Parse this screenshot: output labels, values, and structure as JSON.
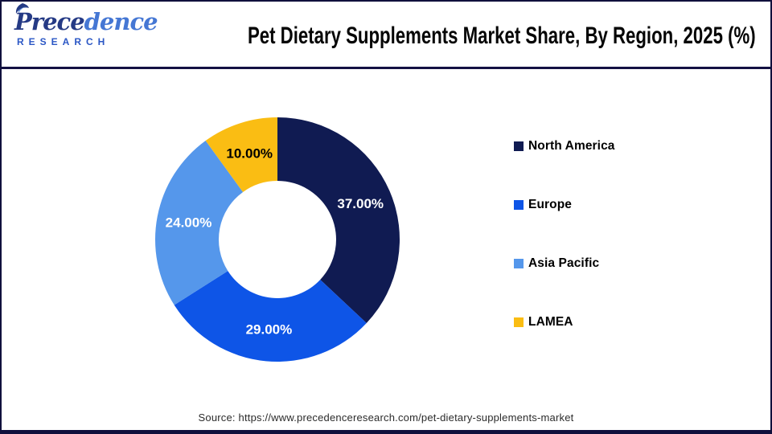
{
  "header": {
    "logo": {
      "brand_part1": "Prece",
      "brand_part2": "dence",
      "brand_sub": "RESEARCH"
    },
    "title": "Pet Dietary Supplements Market Share, By Region, 2025 (%)"
  },
  "chart_data": {
    "type": "pie",
    "subtype": "donut",
    "title": "Pet Dietary Supplements Market Share, By Region, 2025 (%)",
    "categories": [
      "North America",
      "Europe",
      "Asia Pacific",
      "LAMEA"
    ],
    "values": [
      37,
      29,
      24,
      10
    ],
    "slice_labels": [
      "37.00%",
      "29.00%",
      "24.00%",
      "10.00%"
    ],
    "colors": [
      "#101b52",
      "#0e55e7",
      "#5597eb",
      "#fabd13"
    ],
    "slice_label_colors": [
      "#ffffff",
      "#ffffff",
      "#ffffff",
      "#000000"
    ],
    "start_angle_deg": 0,
    "direction": "clockwise",
    "inner_radius_ratio": 0.48,
    "legend_position": "right"
  },
  "footer": {
    "source": "Source: https://www.precedenceresearch.com/pet-dietary-supplements-market"
  },
  "colors": {
    "frame_border": "#10103c",
    "header_divider": "#131042",
    "logo_dark_blue": "#253a85",
    "logo_light_blue": "#4577d4",
    "logo_sub_blue": "#2b57c5",
    "title_text": "#060606",
    "source_text": "#2b2b2b",
    "background": "#ffffff"
  }
}
